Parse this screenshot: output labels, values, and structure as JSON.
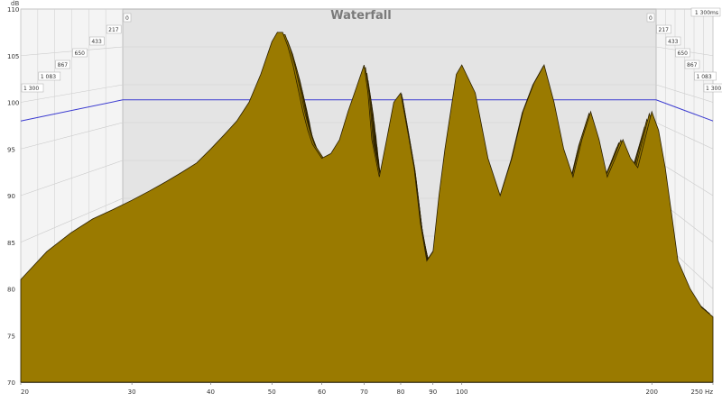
{
  "chart_data": {
    "type": "area",
    "title": "Waterfall",
    "y_unit": "dB",
    "x_unit": "Hz",
    "z_unit": "ms",
    "xlim": [
      20,
      250
    ],
    "ylim": [
      70,
      110
    ],
    "x_scale": "log",
    "x_ticks": [
      {
        "value": 20,
        "label": "20"
      },
      {
        "value": 30,
        "label": "30"
      },
      {
        "value": 40,
        "label": "40"
      },
      {
        "value": 50,
        "label": "50"
      },
      {
        "value": 60,
        "label": "60"
      },
      {
        "value": 70,
        "label": "70"
      },
      {
        "value": 80,
        "label": "80"
      },
      {
        "value": 90,
        "label": "90"
      },
      {
        "value": 100,
        "label": "100"
      },
      {
        "value": 200,
        "label": "200"
      },
      {
        "value": 250,
        "label": "250 Hz"
      }
    ],
    "y_ticks": [
      {
        "value": 70,
        "label": "70"
      },
      {
        "value": 75,
        "label": "75"
      },
      {
        "value": 80,
        "label": "80"
      },
      {
        "value": 85,
        "label": "85"
      },
      {
        "value": 90,
        "label": "90"
      },
      {
        "value": 95,
        "label": "95"
      },
      {
        "value": 100,
        "label": "100"
      },
      {
        "value": 105,
        "label": "105"
      },
      {
        "value": 110,
        "label": "110"
      }
    ],
    "time_labels_left": [
      "0",
      "217",
      "433",
      "650",
      "867",
      "1 083",
      "1 300"
    ],
    "time_labels_right": [
      "0",
      "217",
      "433",
      "650",
      "867",
      "1 083",
      "1 300",
      "1 300ms"
    ],
    "reference_level_db": 98,
    "slice_count": 18,
    "fill_color": "#9a7a00",
    "line_color": "#2b2000",
    "front_slice_frequencies": [
      20,
      22,
      24,
      26,
      28,
      30,
      32,
      34,
      36,
      38,
      40,
      42,
      44,
      46,
      48,
      50,
      51,
      52,
      53,
      54,
      55,
      56,
      57,
      58,
      60,
      62,
      64,
      66,
      68,
      70,
      71,
      72,
      74,
      76,
      78,
      80,
      82,
      84,
      86,
      88,
      90,
      92,
      94,
      96,
      98,
      100,
      105,
      110,
      115,
      120,
      125,
      130,
      135,
      140,
      145,
      150,
      155,
      160,
      165,
      170,
      175,
      180,
      185,
      190,
      195,
      200,
      205,
      210,
      215,
      220,
      230,
      240,
      250
    ],
    "front_slice_db": [
      81,
      84,
      86,
      87.5,
      88.5,
      89.5,
      90.5,
      91.5,
      92.5,
      93.5,
      95,
      96.5,
      98,
      100,
      103,
      106.5,
      107.5,
      107.5,
      106,
      104,
      101.5,
      99,
      97,
      95.5,
      94,
      94.5,
      96,
      99,
      101.5,
      104,
      101,
      96,
      92,
      96,
      100,
      101,
      97,
      93,
      87,
      83,
      84,
      90,
      95,
      99,
      103,
      104,
      101,
      94,
      90,
      94,
      99,
      102,
      104,
      100,
      95,
      92,
      96,
      99,
      96,
      92,
      94,
      96,
      94,
      93,
      96,
      99,
      97,
      93,
      88,
      83,
      80,
      78,
      77
    ]
  }
}
